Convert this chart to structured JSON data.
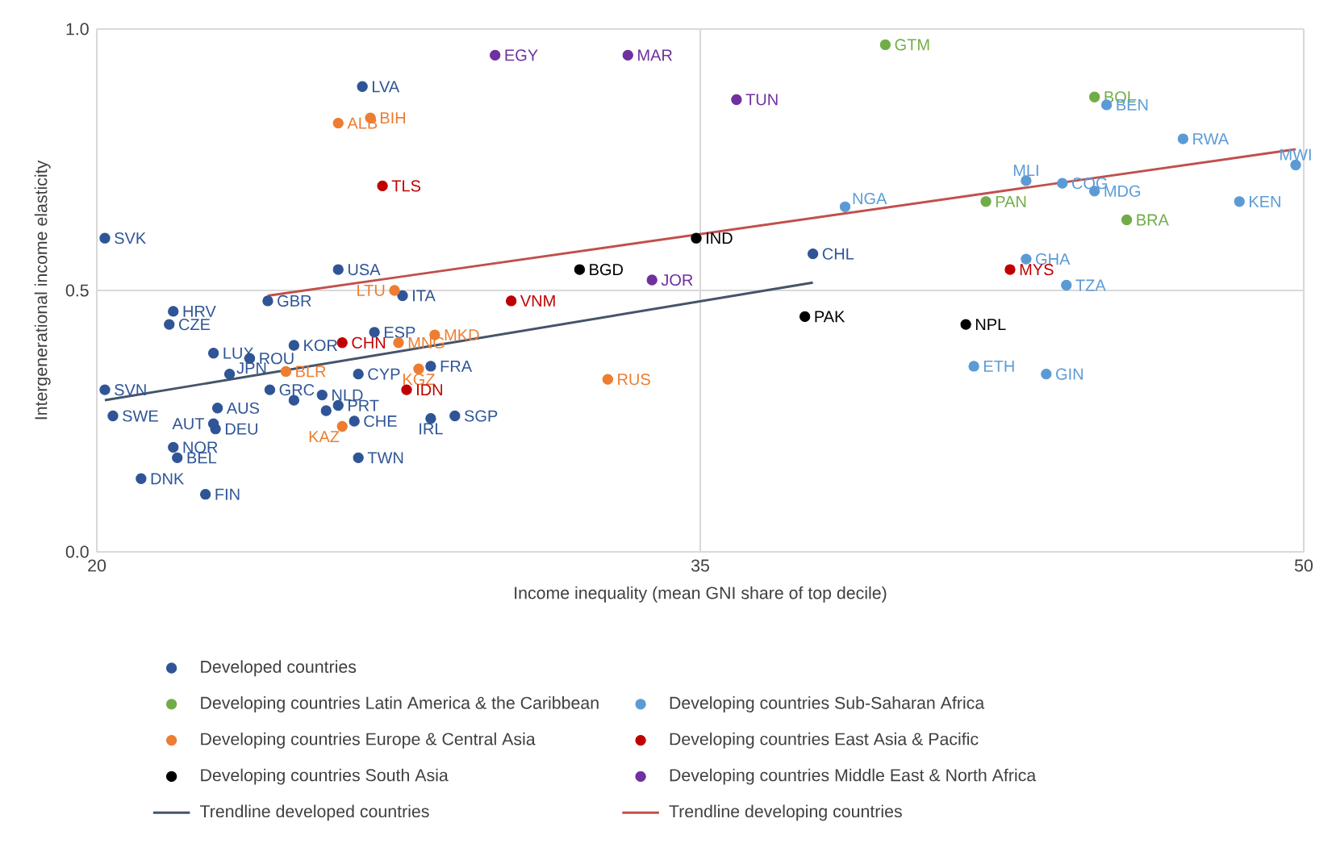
{
  "chart_data": {
    "type": "scatter",
    "xlabel": "Income inequality (mean GNI share of top decile)",
    "ylabel": "Intergenerational income elasticity",
    "xlim": [
      20,
      50
    ],
    "xticks": [
      20,
      35,
      50
    ],
    "ylim": [
      0,
      1
    ],
    "yticks": [
      {
        "value": 0,
        "label": "0.0"
      },
      {
        "value": 0.5,
        "label": "0.5"
      },
      {
        "value": 1,
        "label": "1.0"
      }
    ],
    "grid": true,
    "legend": "bottom",
    "series": [
      {
        "name": "Developed countries",
        "marker": "circle",
        "color": "#2f5597",
        "x": [
          20.2,
          26.0,
          24.25,
          21.9,
          21.8,
          22.9,
          23.8,
          24.9,
          23.3,
          20.2,
          20.4,
          23.0,
          22.9,
          22.95,
          21.9,
          22.0,
          21.1,
          22.7,
          24.3,
          25.6,
          26.0,
          26.4,
          26.5,
          26.9,
          27.6,
          26.5,
          28.3,
          28.3,
          28.9,
          26.6,
          37.8,
          24.9,
          25.7
        ],
        "values": [
          0.6,
          0.54,
          0.48,
          0.46,
          0.435,
          0.38,
          0.37,
          0.395,
          0.34,
          0.31,
          0.26,
          0.275,
          0.245,
          0.235,
          0.2,
          0.18,
          0.14,
          0.11,
          0.31,
          0.3,
          0.28,
          0.25,
          0.34,
          0.42,
          0.49,
          0.18,
          0.355,
          0.255,
          0.26,
          0.89,
          0.57,
          0.29,
          0.27
        ]
      },
      {
        "name": "Developing countries Latin America & the Caribbean",
        "marker": "circle",
        "color": "#70ad47",
        "x": [
          39.6,
          44.8,
          42.1,
          45.6
        ],
        "values": [
          0.97,
          0.87,
          0.67,
          0.635
        ]
      },
      {
        "name": "Developing countries Sub-Saharan Africa",
        "marker": "circle",
        "color": "#5b9bd5",
        "x": [
          45.1,
          47.0,
          49.8,
          43.1,
          44.0,
          44.8,
          48.4,
          38.6,
          43.1,
          44.1,
          41.8,
          43.6
        ],
        "values": [
          0.855,
          0.79,
          0.74,
          0.71,
          0.705,
          0.69,
          0.67,
          0.66,
          0.56,
          0.51,
          0.355,
          0.34
        ]
      },
      {
        "name": "Developing countries Europe & Central Asia",
        "marker": "circle",
        "color": "#ed7d31",
        "x": [
          26.0,
          26.8,
          27.4,
          28.4,
          27.5,
          28.0,
          26.1,
          24.7,
          32.7
        ],
        "values": [
          0.82,
          0.83,
          0.5,
          0.415,
          0.4,
          0.35,
          0.24,
          0.345,
          0.33
        ]
      },
      {
        "name": "Developing countries East Asia & Pacific",
        "marker": "circle",
        "color": "#c00000",
        "x": [
          27.1,
          26.1,
          27.7,
          30.3,
          42.7
        ],
        "values": [
          0.7,
          0.4,
          0.31,
          0.48,
          0.54
        ]
      },
      {
        "name": "Developing countries South Asia",
        "marker": "circle",
        "color": "#000000",
        "x": [
          32.0,
          34.9,
          37.6,
          41.6
        ],
        "values": [
          0.54,
          0.6,
          0.45,
          0.435
        ]
      },
      {
        "name": "Developing countries Middle East & North Africa",
        "marker": "circle",
        "color": "#7030a0",
        "x": [
          29.9,
          33.2,
          35.9,
          33.8
        ],
        "values": [
          0.95,
          0.95,
          0.865,
          0.52
        ]
      },
      {
        "name": "Trendline developed countries",
        "type": "line",
        "marker": "none",
        "color": "#44546a",
        "x": [
          20.2,
          37.8
        ],
        "values": [
          0.29,
          0.515
        ]
      },
      {
        "name": "Trendline developing countries",
        "type": "line",
        "marker": "none",
        "color": "#c0504d",
        "x": [
          24.25,
          49.8
        ],
        "values": [
          0.49,
          0.77
        ]
      }
    ],
    "annotations": [
      {
        "text": "SVK",
        "x": 20.2,
        "y": 0.6
      },
      {
        "text": "USA",
        "x": 26.0,
        "y": 0.54
      },
      {
        "text": "GBR",
        "x": 24.25,
        "y": 0.48
      },
      {
        "text": "HRV",
        "x": 21.9,
        "y": 0.46
      },
      {
        "text": "CZE",
        "x": 21.8,
        "y": 0.435
      },
      {
        "text": "LUX",
        "x": 22.9,
        "y": 0.38
      },
      {
        "text": "ROU",
        "x": 23.8,
        "y": 0.37
      },
      {
        "text": "KOR",
        "x": 24.9,
        "y": 0.395
      },
      {
        "text": "JPN",
        "x": 23.3,
        "y": 0.34
      },
      {
        "text": "SVN",
        "x": 20.2,
        "y": 0.31
      },
      {
        "text": "SWE",
        "x": 20.4,
        "y": 0.26
      },
      {
        "text": "AUS",
        "x": 23.0,
        "y": 0.275
      },
      {
        "text": "AUT",
        "x": 22.9,
        "y": 0.245
      },
      {
        "text": "DEU",
        "x": 22.95,
        "y": 0.235
      },
      {
        "text": "NOR",
        "x": 21.9,
        "y": 0.2
      },
      {
        "text": "BEL",
        "x": 22.0,
        "y": 0.18
      },
      {
        "text": "DNK",
        "x": 21.1,
        "y": 0.14
      },
      {
        "text": "FIN",
        "x": 22.7,
        "y": 0.11
      },
      {
        "text": "GRC",
        "x": 24.3,
        "y": 0.31
      },
      {
        "text": "NLD",
        "x": 25.6,
        "y": 0.3
      },
      {
        "text": "PRT",
        "x": 26.0,
        "y": 0.28
      },
      {
        "text": "CHE",
        "x": 26.4,
        "y": 0.25
      },
      {
        "text": "CYP",
        "x": 26.5,
        "y": 0.34
      },
      {
        "text": "ESP",
        "x": 26.9,
        "y": 0.42
      },
      {
        "text": "ITA",
        "x": 27.6,
        "y": 0.49
      },
      {
        "text": "TWN",
        "x": 26.5,
        "y": 0.18
      },
      {
        "text": "FRA",
        "x": 28.3,
        "y": 0.355
      },
      {
        "text": "IRL",
        "x": 28.3,
        "y": 0.255
      },
      {
        "text": "SGP",
        "x": 28.9,
        "y": 0.26
      },
      {
        "text": "LVA",
        "x": 26.6,
        "y": 0.89
      },
      {
        "text": "CHL",
        "x": 37.8,
        "y": 0.57
      },
      {
        "text": "GTM",
        "x": 39.6,
        "y": 0.97
      },
      {
        "text": "BOL",
        "x": 44.8,
        "y": 0.87
      },
      {
        "text": "PAN",
        "x": 42.1,
        "y": 0.67
      },
      {
        "text": "BRA",
        "x": 45.6,
        "y": 0.635
      },
      {
        "text": "BEN",
        "x": 45.1,
        "y": 0.855
      },
      {
        "text": "RWA",
        "x": 47.0,
        "y": 0.79
      },
      {
        "text": "MWI",
        "x": 49.8,
        "y": 0.74
      },
      {
        "text": "MLI",
        "x": 43.1,
        "y": 0.71
      },
      {
        "text": "COG",
        "x": 44.0,
        "y": 0.705
      },
      {
        "text": "MDG",
        "x": 44.8,
        "y": 0.69
      },
      {
        "text": "KEN",
        "x": 48.4,
        "y": 0.67
      },
      {
        "text": "NGA",
        "x": 38.6,
        "y": 0.66
      },
      {
        "text": "GHA",
        "x": 43.1,
        "y": 0.56
      },
      {
        "text": "TZA",
        "x": 44.1,
        "y": 0.51
      },
      {
        "text": "ETH",
        "x": 41.8,
        "y": 0.355
      },
      {
        "text": "GIN",
        "x": 43.6,
        "y": 0.34
      },
      {
        "text": "ALB",
        "x": 26.0,
        "y": 0.82
      },
      {
        "text": "BIH",
        "x": 26.8,
        "y": 0.83
      },
      {
        "text": "LTU",
        "x": 27.4,
        "y": 0.5
      },
      {
        "text": "MKD",
        "x": 28.4,
        "y": 0.415
      },
      {
        "text": "MNG",
        "x": 27.5,
        "y": 0.4
      },
      {
        "text": "KGZ",
        "x": 28.0,
        "y": 0.35
      },
      {
        "text": "KAZ",
        "x": 26.1,
        "y": 0.24
      },
      {
        "text": "BLR",
        "x": 24.7,
        "y": 0.345
      },
      {
        "text": "RUS",
        "x": 32.7,
        "y": 0.33
      },
      {
        "text": "TLS",
        "x": 27.1,
        "y": 0.7
      },
      {
        "text": "CHN",
        "x": 26.1,
        "y": 0.4
      },
      {
        "text": "IDN",
        "x": 27.7,
        "y": 0.31
      },
      {
        "text": "VNM",
        "x": 30.3,
        "y": 0.48
      },
      {
        "text": "MYS",
        "x": 42.7,
        "y": 0.54
      },
      {
        "text": "BGD",
        "x": 32.0,
        "y": 0.54
      },
      {
        "text": "IND",
        "x": 34.9,
        "y": 0.6
      },
      {
        "text": "PAK",
        "x": 37.6,
        "y": 0.45
      },
      {
        "text": "NPL",
        "x": 41.6,
        "y": 0.435
      },
      {
        "text": "EGY",
        "x": 29.9,
        "y": 0.95
      },
      {
        "text": "MAR",
        "x": 33.2,
        "y": 0.95
      },
      {
        "text": "TUN",
        "x": 35.9,
        "y": 0.865
      },
      {
        "text": "JOR",
        "x": 33.8,
        "y": 0.52
      }
    ]
  }
}
